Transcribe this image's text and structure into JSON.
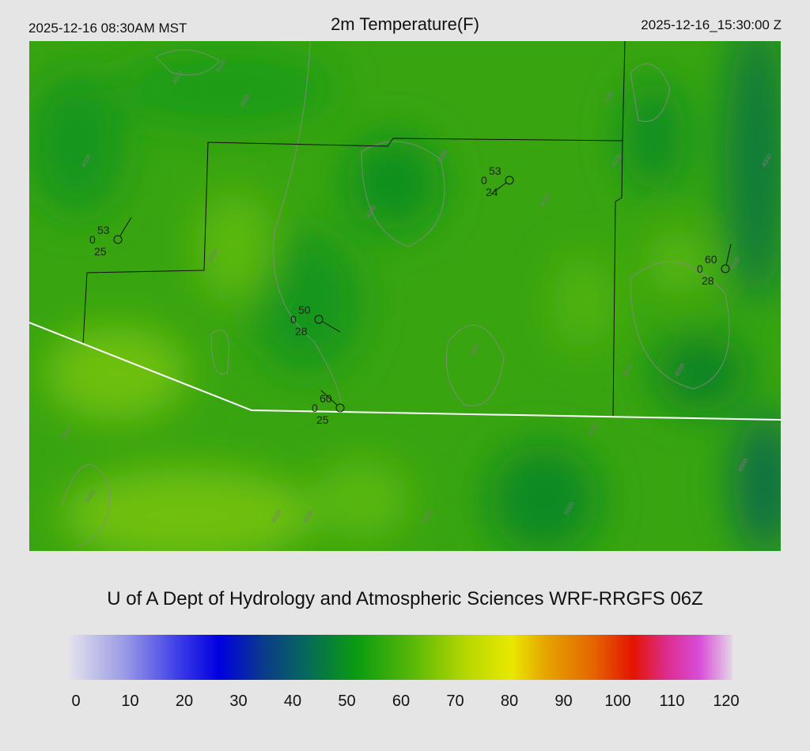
{
  "header": {
    "local_time": "2025-12-16 08:30AM MST",
    "title": "2m Temperature(F)",
    "utc_time": "2025-12-16_15:30:00 Z"
  },
  "credit": "U of A Dept of Hydrology and Atmospheric Sciences WRF-RRGFS 06Z",
  "colorbar": {
    "min": 0,
    "max": 120,
    "ticks": [
      "0",
      "10",
      "20",
      "30",
      "40",
      "50",
      "60",
      "70",
      "80",
      "90",
      "100",
      "110",
      "120"
    ],
    "stops": [
      [
        "0",
        "#e2e2ec"
      ],
      [
        "10",
        "#9a9ae6"
      ],
      [
        "20",
        "#3a3ae8"
      ],
      [
        "27",
        "#0000e0"
      ],
      [
        "35",
        "#0a3a8c"
      ],
      [
        "42",
        "#066460"
      ],
      [
        "52",
        "#0a9c10"
      ],
      [
        "62",
        "#58b808"
      ],
      [
        "72",
        "#b8d800"
      ],
      [
        "80",
        "#e8e800"
      ],
      [
        "86",
        "#e6a600"
      ],
      [
        "95",
        "#e46400"
      ],
      [
        "102",
        "#e41400"
      ],
      [
        "108",
        "#dc2c8c"
      ],
      [
        "114",
        "#d84cd8"
      ],
      [
        "120",
        "#e6d6e6"
      ]
    ]
  },
  "map": {
    "contour_labels": [
      "4000",
      "4000",
      "3500",
      "4000",
      "4500",
      "4000",
      "5000",
      "4500",
      "5000",
      "4000",
      "3500",
      "4000",
      "4500",
      "3500",
      "3000",
      "4000",
      "5000",
      "4500",
      "4000",
      "3000",
      "4000",
      "5000",
      "4500"
    ],
    "stations": [
      {
        "temp": "53",
        "cloud": "0",
        "dew": "25"
      },
      {
        "temp": "53",
        "cloud": "0",
        "dew": "24"
      },
      {
        "temp": "60",
        "cloud": "0",
        "dew": "28"
      },
      {
        "temp": "50",
        "cloud": "0",
        "dew": "28"
      },
      {
        "temp": "60",
        "cloud": "0",
        "dew": "25"
      }
    ]
  }
}
